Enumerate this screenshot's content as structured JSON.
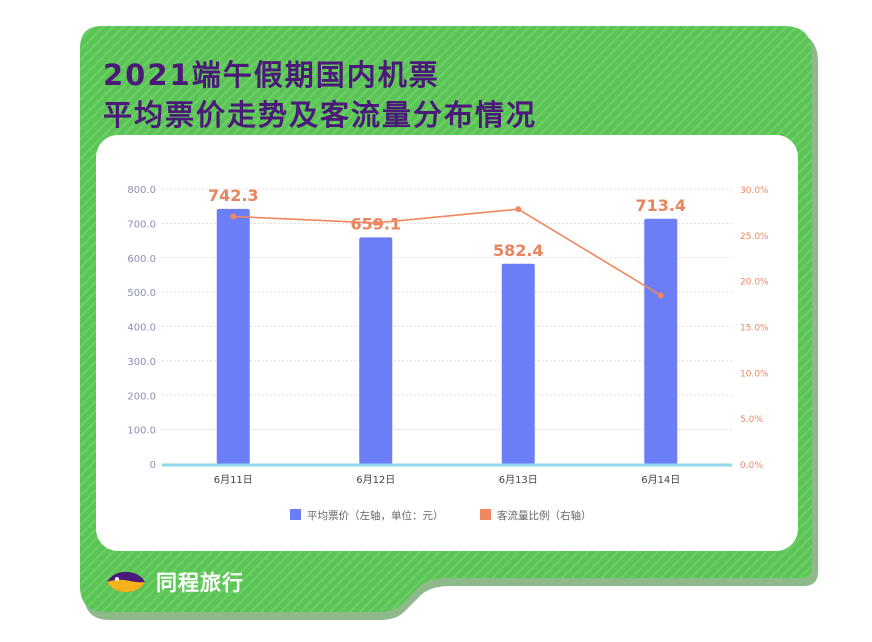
{
  "header": {
    "title_line1": "2021端午假期国内机票",
    "title_line2": "平均票价走势及客流量分布情况"
  },
  "brand": {
    "name": "同程旅行",
    "logo_icon": "fish-logo-icon"
  },
  "colors": {
    "green": "#5fc85a",
    "purple": "#4b1a78",
    "bar": "#6b7ef5",
    "line": "#f0875f"
  },
  "chart_data": {
    "type": "bar",
    "categories": [
      "6月11日",
      "6月12日",
      "6月13日",
      "6月14日"
    ],
    "series": [
      {
        "name": "平均票价（左轴，单位：元）",
        "type": "bar",
        "axis": "left",
        "values": [
          742.3,
          659.1,
          582.4,
          713.4
        ]
      },
      {
        "name": "客流量比例（右轴）",
        "type": "line",
        "axis": "right",
        "values": [
          27.0,
          26.3,
          27.8,
          18.4
        ]
      }
    ],
    "data_labels": [
      "742.3",
      "659.1",
      "582.4",
      "713.4"
    ],
    "y_left": {
      "min": 0,
      "max": 800,
      "ticks": [
        "0",
        "100.0",
        "200.0",
        "300.0",
        "400.0",
        "500.0",
        "600.0",
        "700.0",
        "800.0"
      ]
    },
    "y_right": {
      "min": 0,
      "max": 30,
      "ticks": [
        "0.0%",
        "5.0%",
        "10.0%",
        "15.0%",
        "20.0%",
        "25.0%",
        "30.0%"
      ]
    },
    "grid": true,
    "legend_position": "bottom",
    "legend": [
      "平均票价（左轴，单位：元）",
      "客流量比例（右轴）"
    ]
  }
}
